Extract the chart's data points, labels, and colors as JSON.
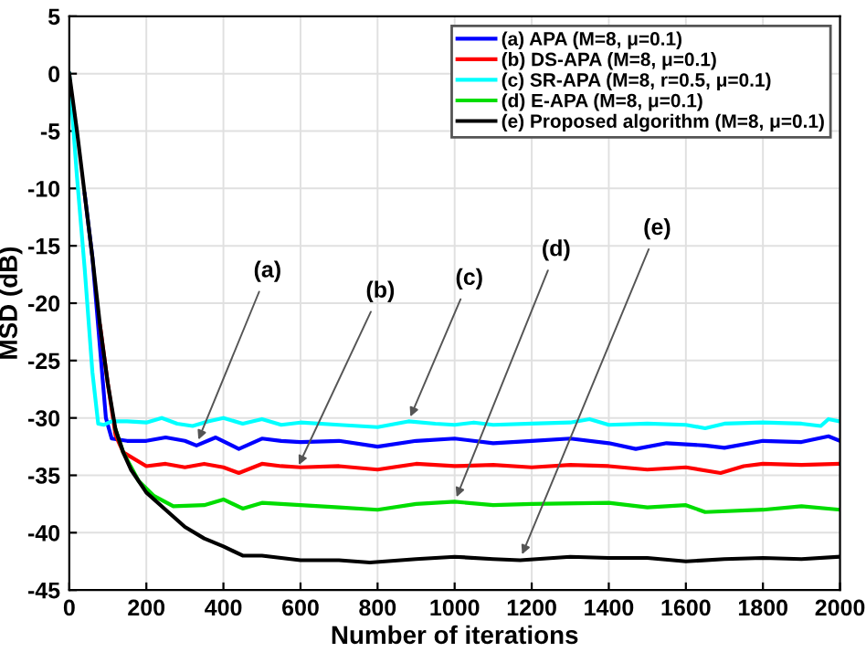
{
  "chart_data": {
    "type": "line",
    "xlabel": "Number of iterations",
    "ylabel": "MSD (dB)",
    "xlim": [
      0,
      2000
    ],
    "xticks": [
      0,
      200,
      400,
      600,
      800,
      1000,
      1200,
      1400,
      1600,
      1800,
      2000
    ],
    "ylim": [
      -45,
      5
    ],
    "yticks": [
      -45,
      -40,
      -35,
      -30,
      -25,
      -20,
      -15,
      -10,
      -5,
      0,
      5
    ],
    "grid": true,
    "legend": "top right",
    "line_style": "solid",
    "marker": "none",
    "series": [
      {
        "name": "(a) APA (M=8, μ=0.1)",
        "color": "#0000ff",
        "x": [
          40,
          60,
          80,
          95,
          110,
          150,
          200,
          250,
          300,
          330,
          380,
          440,
          500,
          550,
          600,
          700,
          800,
          900,
          1000,
          1100,
          1200,
          1300,
          1400,
          1470,
          1550,
          1650,
          1700,
          1800,
          1900,
          1970,
          2000
        ],
        "values": [
          -10.5,
          -16,
          -24,
          -30,
          -31.8,
          -32,
          -32,
          -31.7,
          -32,
          -32.4,
          -31.7,
          -32.7,
          -31.8,
          -32,
          -32.1,
          -32,
          -32.5,
          -32,
          -31.8,
          -32.2,
          -32,
          -31.8,
          -32.2,
          -32.7,
          -32.2,
          -32.4,
          -32.6,
          -32,
          -32.1,
          -31.6,
          -32
        ]
      },
      {
        "name": "(b) DS-APA (M=8, μ=0.1)",
        "color": "#ff0000",
        "x": [
          80,
          100,
          120,
          140,
          200,
          250,
          300,
          350,
          400,
          440,
          500,
          550,
          600,
          700,
          800,
          900,
          1000,
          1100,
          1200,
          1300,
          1400,
          1500,
          1600,
          1690,
          1750,
          1800,
          1900,
          2000
        ],
        "values": [
          -22,
          -27,
          -31.5,
          -33,
          -34.2,
          -34,
          -34.3,
          -34,
          -34.3,
          -34.8,
          -34,
          -34.2,
          -34.3,
          -34.2,
          -34.5,
          -34,
          -34.2,
          -34.1,
          -34.3,
          -34.1,
          -34.2,
          -34.5,
          -34.3,
          -34.8,
          -34.2,
          -34,
          -34.1,
          -34
        ]
      },
      {
        "name": "(c) SR-APA (M=8, r=0.5, μ=0.1)",
        "color": "#00ffff",
        "x": [
          0,
          20,
          40,
          60,
          75,
          90,
          110,
          150,
          200,
          240,
          280,
          320,
          360,
          400,
          450,
          500,
          550,
          600,
          700,
          800,
          880,
          950,
          1000,
          1050,
          1100,
          1200,
          1300,
          1350,
          1400,
          1500,
          1600,
          1650,
          1700,
          1800,
          1900,
          1950,
          1970,
          2000
        ],
        "values": [
          0,
          -9,
          -17,
          -26,
          -30.5,
          -30.6,
          -30.3,
          -30.3,
          -30.4,
          -30,
          -30.5,
          -30.7,
          -30.3,
          -30,
          -30.5,
          -30.1,
          -30.6,
          -30.4,
          -30.6,
          -30.8,
          -30.3,
          -30.5,
          -30.6,
          -30.4,
          -30.6,
          -30.5,
          -30.4,
          -30.1,
          -30.6,
          -30.5,
          -30.6,
          -30.9,
          -30.5,
          -30.4,
          -30.5,
          -30.7,
          -30.1,
          -30.3
        ]
      },
      {
        "name": "(d) E-APA (M=8, μ=0.1)",
        "color": "#00dd00",
        "x": [
          120,
          140,
          180,
          220,
          270,
          350,
          400,
          450,
          500,
          600,
          700,
          800,
          900,
          1000,
          1100,
          1200,
          1400,
          1500,
          1600,
          1650,
          1800,
          1900,
          2000
        ],
        "values": [
          -31,
          -33,
          -35.5,
          -36.8,
          -37.7,
          -37.6,
          -37.1,
          -37.9,
          -37.4,
          -37.6,
          -37.8,
          -38,
          -37.5,
          -37.3,
          -37.6,
          -37.5,
          -37.4,
          -37.8,
          -37.6,
          -38.2,
          -38,
          -37.7,
          -38
        ]
      },
      {
        "name": "(e) Proposed algorithm (M=8, μ=0.1)",
        "color": "#000000",
        "x": [
          0,
          20,
          40,
          60,
          80,
          100,
          120,
          140,
          160,
          200,
          250,
          300,
          350,
          400,
          450,
          500,
          600,
          700,
          780,
          900,
          1000,
          1100,
          1170,
          1300,
          1400,
          1500,
          1600,
          1700,
          1800,
          1900,
          2000
        ],
        "values": [
          0,
          -5,
          -10.5,
          -16,
          -22,
          -27,
          -31,
          -33,
          -34.5,
          -36.5,
          -38,
          -39.5,
          -40.5,
          -41.2,
          -42,
          -42,
          -42.4,
          -42.4,
          -42.6,
          -42.3,
          -42.1,
          -42.3,
          -42.4,
          -42.1,
          -42.2,
          -42.2,
          -42.5,
          -42.3,
          -42.2,
          -42.3,
          -42.1
        ]
      }
    ],
    "annotations": [
      {
        "text": "(a)",
        "x": 330,
        "y": -32.3
      },
      {
        "text": "(b)",
        "x": 590,
        "y": -34.5
      },
      {
        "text": "(c)",
        "x": 880,
        "y": -30.3
      },
      {
        "text": "(d)",
        "x": 1000,
        "y": -37.3
      },
      {
        "text": "(e)",
        "x": 1170,
        "y": -42.3
      }
    ]
  }
}
